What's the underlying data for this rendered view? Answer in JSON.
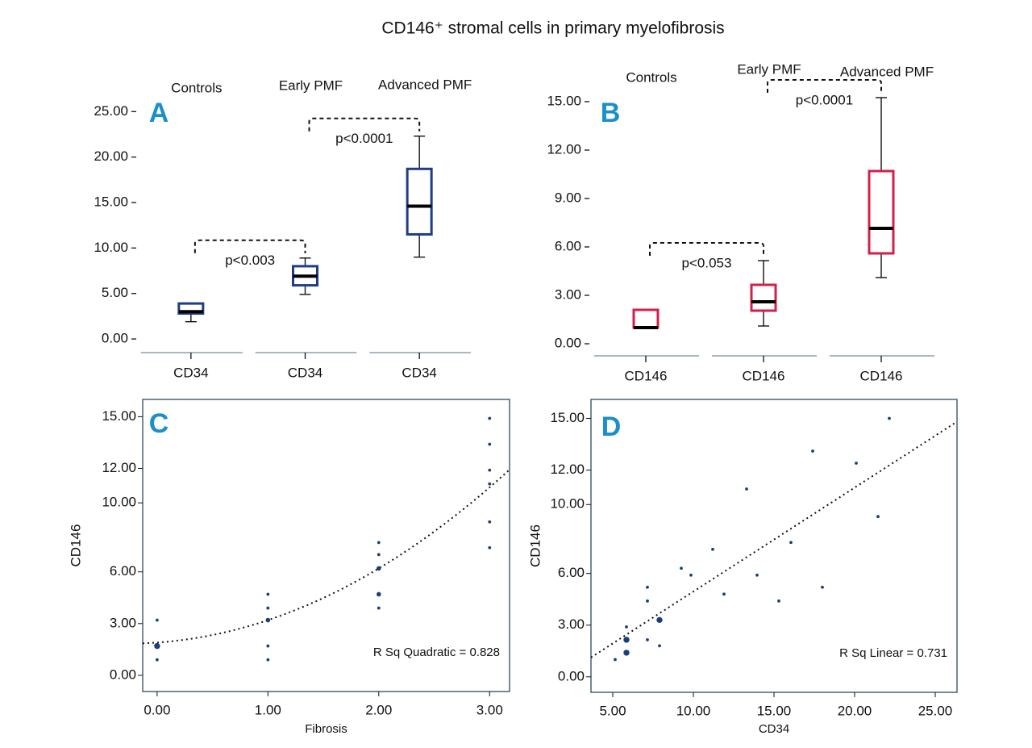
{
  "title": "CD146⁺ stromal cells in primary myelofibrosis",
  "chart_data": [
    {
      "type": "box",
      "panel": "A",
      "groups": [
        "Controls",
        "Early PMF",
        "Advanced PMF"
      ],
      "categories": [
        "CD34",
        "CD34",
        "CD34"
      ],
      "color": "#1f3c88",
      "boxes": [
        {
          "min": 1.9,
          "q1": 2.8,
          "median": 3,
          "q3": 3.9,
          "max": 3.9
        },
        {
          "min": 4.9,
          "q1": 5.9,
          "median": 6.9,
          "q3": 8.0,
          "max": 8.9
        },
        {
          "min": 9.0,
          "q1": 11.5,
          "median": 14.6,
          "q3": 18.7,
          "max": 22.3
        }
      ],
      "annotations": [
        "p<0.003",
        "p<0.0001"
      ],
      "ylim": [
        -1.5,
        26
      ],
      "yticks": [
        {
          "value": 0,
          "label": "0.00"
        },
        {
          "value": 5,
          "label": "5.00"
        },
        {
          "value": 10,
          "label": "10.00"
        },
        {
          "value": 15,
          "label": "15.00"
        },
        {
          "value": 20,
          "label": "20.00"
        },
        {
          "value": 25,
          "label": "25.00"
        }
      ]
    },
    {
      "type": "box",
      "panel": "B",
      "groups": [
        "Controls",
        "Early PMF",
        "Advanced PMF"
      ],
      "categories": [
        "CD146",
        "CD146",
        "CD146"
      ],
      "color": "#d41f4a",
      "boxes": [
        {
          "min": 1.0,
          "q1": 1.0,
          "median": 1.0,
          "q3": 2.1,
          "max": 2.1
        },
        {
          "min": 1.1,
          "q1": 2.05,
          "median": 2.6,
          "q3": 3.65,
          "max": 5.15
        },
        {
          "min": 4.1,
          "q1": 5.6,
          "median": 7.15,
          "q3": 10.7,
          "max": 15.25
        }
      ],
      "annotations": [
        "p<0.053",
        "p<0.0001"
      ],
      "ylim": [
        -0.75,
        15.7
      ],
      "yticks": [
        {
          "value": 0,
          "label": "0.00"
        },
        {
          "value": 3,
          "label": "3.00"
        },
        {
          "value": 6,
          "label": "6.00"
        },
        {
          "value": 9,
          "label": "9.00"
        },
        {
          "value": 12,
          "label": "12.00"
        },
        {
          "value": 15,
          "label": "15.00"
        }
      ]
    },
    {
      "type": "scatter",
      "panel": "C",
      "x_label": "Fibrosis",
      "y_label": "CD146",
      "color": "#1b3f7a",
      "x": [
        0,
        0,
        0,
        1,
        1,
        1,
        1,
        1,
        2,
        2,
        2,
        2,
        2,
        3,
        3,
        3,
        3,
        3,
        3
      ],
      "y": [
        3.2,
        1.7,
        0.9,
        4.7,
        3.9,
        3.2,
        1.7,
        0.9,
        7.7,
        7.0,
        6.2,
        4.7,
        3.9,
        14.9,
        13.4,
        11.9,
        11.1,
        8.9,
        7.4
      ],
      "sizes": [
        1,
        3,
        1,
        1,
        1,
        2,
        1,
        1,
        1,
        1,
        2,
        2,
        1,
        1,
        1,
        1,
        1,
        1,
        1
      ],
      "fit": {
        "type": "quadratic",
        "coefficients": [
          1.9,
          0.45,
          0.85
        ]
      },
      "annotation": "R Sq Quadratic = 0.828",
      "xlim": [
        -0.13,
        3.18
      ],
      "ylim": [
        -0.94,
        16.0
      ],
      "xticks": [
        {
          "value": 0,
          "label": "0.00"
        },
        {
          "value": 1,
          "label": "1.00"
        },
        {
          "value": 2,
          "label": "2.00"
        },
        {
          "value": 3,
          "label": "3.00"
        }
      ],
      "yticks": [
        {
          "value": 0,
          "label": "0.00"
        },
        {
          "value": 3,
          "label": "3.00"
        },
        {
          "value": 6,
          "label": "6.00"
        },
        {
          "value": 10,
          "label": "10.00"
        },
        {
          "value": 12,
          "label": "12.00"
        },
        {
          "value": 15,
          "label": "15.00"
        }
      ]
    },
    {
      "type": "scatter",
      "panel": "D",
      "x_label": "CD34",
      "y_label": "CD146",
      "color": "#1b3f7a",
      "x": [
        5.15,
        5.85,
        5.85,
        5.85,
        7.15,
        7.15,
        7.15,
        7.9,
        7.9,
        9.25,
        9.85,
        11.2,
        11.9,
        13.3,
        13.95,
        15.3,
        16.05,
        17.4,
        18.0,
        20.1,
        21.45,
        22.15
      ],
      "y": [
        1.0,
        2.9,
        2.15,
        1.4,
        5.2,
        4.4,
        2.15,
        3.3,
        1.8,
        6.3,
        5.9,
        7.4,
        4.8,
        10.9,
        5.9,
        4.4,
        7.8,
        13.1,
        5.2,
        12.4,
        9.3,
        15.0
      ],
      "sizes": [
        1,
        1,
        3,
        3,
        1,
        1,
        1,
        3,
        1,
        1,
        1,
        1,
        1,
        1,
        1,
        1,
        1,
        1,
        1,
        1,
        1,
        1
      ],
      "fit": {
        "type": "linear",
        "coefficients": [
          -1.08,
          0.603
        ]
      },
      "annotation": "R Sq Linear = 0.731",
      "xlim": [
        3.65,
        26.35
      ],
      "ylim": [
        -0.9,
        16.1
      ],
      "xticks": [
        {
          "value": 5,
          "label": "5.00"
        },
        {
          "value": 10,
          "label": "10.00"
        },
        {
          "value": 15,
          "label": "15.00"
        },
        {
          "value": 20,
          "label": "20.00"
        },
        {
          "value": 25,
          "label": "25.00"
        }
      ],
      "yticks": [
        {
          "value": 0,
          "label": "0.00"
        },
        {
          "value": 3,
          "label": "3.00"
        },
        {
          "value": 6,
          "label": "6.00"
        },
        {
          "value": 10,
          "label": "10.00"
        },
        {
          "value": 12,
          "label": "12.00"
        },
        {
          "value": 15,
          "label": "15.00"
        }
      ]
    }
  ]
}
